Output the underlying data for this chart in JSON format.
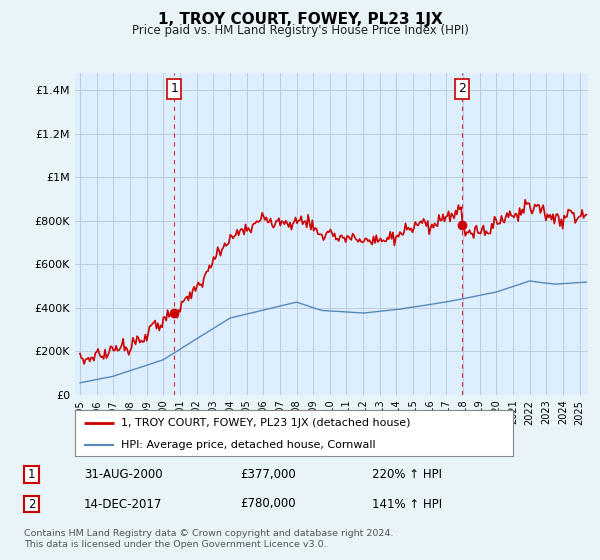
{
  "title": "1, TROY COURT, FOWEY, PL23 1JX",
  "subtitle": "Price paid vs. HM Land Registry's House Price Index (HPI)",
  "ylabel_ticks": [
    "£0",
    "£200K",
    "£400K",
    "£600K",
    "£800K",
    "£1M",
    "£1.2M",
    "£1.4M"
  ],
  "ytick_values": [
    0,
    200000,
    400000,
    600000,
    800000,
    1000000,
    1200000,
    1400000
  ],
  "ylim": [
    0,
    1480000
  ],
  "xlim_start": 1994.7,
  "xlim_end": 2025.5,
  "sale1_x": 2000.67,
  "sale1_y": 377000,
  "sale1_label": "1",
  "sale1_date": "31-AUG-2000",
  "sale1_price": "£377,000",
  "sale1_hpi": "220% ↑ HPI",
  "sale2_x": 2017.96,
  "sale2_y": 780000,
  "sale2_label": "2",
  "sale2_date": "14-DEC-2017",
  "sale2_price": "£780,000",
  "sale2_hpi": "141% ↑ HPI",
  "line_color_price": "#cc0000",
  "line_color_hpi": "#5588bb",
  "vline_color": "#cc0000",
  "background_color": "#e8f4f8",
  "plot_bg_color": "#ddeeff",
  "grid_color": "#bbccdd",
  "legend_label_price": "1, TROY COURT, FOWEY, PL23 1JX (detached house)",
  "legend_label_hpi": "HPI: Average price, detached house, Cornwall",
  "footer": "Contains HM Land Registry data © Crown copyright and database right 2024.\nThis data is licensed under the Open Government Licence v3.0."
}
